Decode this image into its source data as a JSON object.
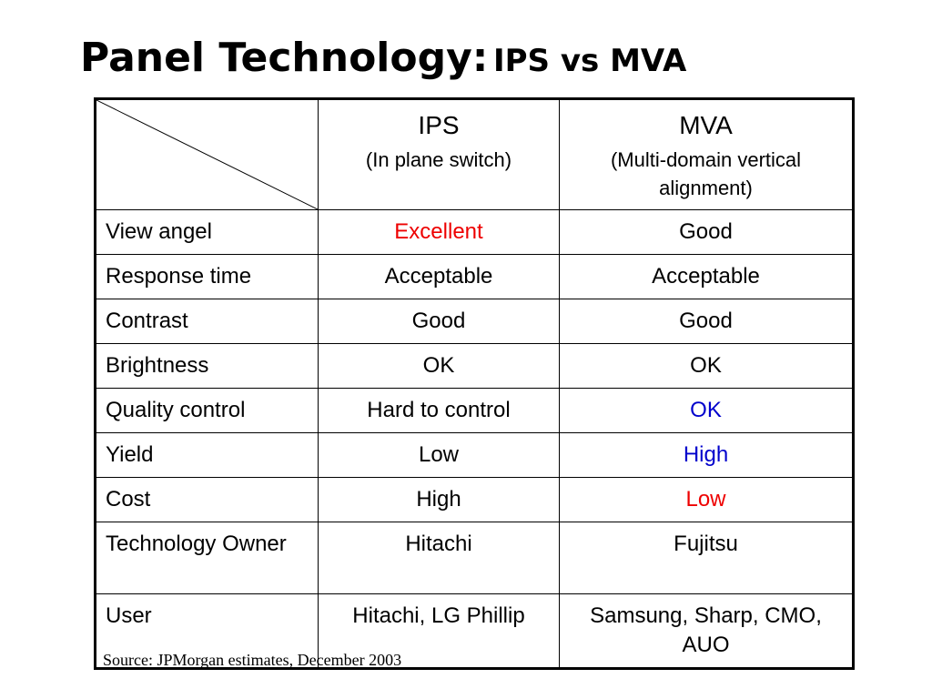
{
  "title": {
    "main": "Panel Technology:",
    "sub": "IPS vs MVA"
  },
  "colors": {
    "red": "#ee0000",
    "blue": "#0000cc",
    "text": "#000000"
  },
  "header": {
    "ips": {
      "name": "IPS",
      "desc": "(In plane switch)"
    },
    "mva": {
      "name": "MVA",
      "desc": "(Multi-domain vertical alignment)"
    }
  },
  "rows": [
    {
      "label": "View angel",
      "ips": "Excellent",
      "mva": "Good",
      "ips_color": "#ee0000",
      "mva_color": "#000000"
    },
    {
      "label": "Response time",
      "ips": "Acceptable",
      "mva": "Acceptable",
      "ips_color": "#000000",
      "mva_color": "#000000"
    },
    {
      "label": "Contrast",
      "ips": "Good",
      "mva": "Good",
      "ips_color": "#000000",
      "mva_color": "#000000"
    },
    {
      "label": "Brightness",
      "ips": "OK",
      "mva": "OK",
      "ips_color": "#000000",
      "mva_color": "#000000"
    },
    {
      "label": "Quality control",
      "ips": "Hard to control",
      "mva": "OK",
      "ips_color": "#000000",
      "mva_color": "#0000cc"
    },
    {
      "label": "Yield",
      "ips": "Low",
      "mva": "High",
      "ips_color": "#000000",
      "mva_color": "#0000cc"
    },
    {
      "label": "Cost",
      "ips": "High",
      "mva": "Low",
      "ips_color": "#000000",
      "mva_color": "#ee0000"
    },
    {
      "label": "Technology Owner",
      "ips": "Hitachi",
      "mva": "Fujitsu",
      "ips_color": "#000000",
      "mva_color": "#000000"
    },
    {
      "label": "User",
      "ips": "Hitachi, LG Phillip",
      "mva": "Samsung, Sharp, CMO, AUO",
      "ips_color": "#000000",
      "mva_color": "#000000"
    }
  ],
  "source": "Source: JPMorgan estimates, December 2003"
}
